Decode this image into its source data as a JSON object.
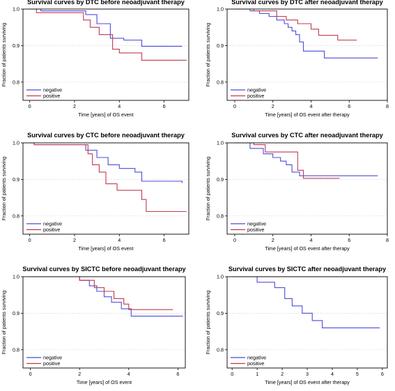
{
  "colors": {
    "negative": "#4b4bdb",
    "positive": "#c0394d",
    "frame": "#000000",
    "grid": "#cfcfcf"
  },
  "chart_data": [
    {
      "type": "line",
      "title": "Survival curves by DTC before neoadjuvant therapy",
      "xlabel": "Time [years] of OS event",
      "ylabel": "Fraction of patients surviving",
      "xlim": [
        -0.3,
        7.1
      ],
      "ylim": [
        0.75,
        1.0
      ],
      "xticks": [
        "0",
        "2",
        "4",
        "6"
      ],
      "xtick_values": [
        0,
        2,
        4,
        6
      ],
      "yticks": [
        "0.8",
        "0.9",
        "1.0"
      ],
      "ytick_values": [
        0.8,
        0.9,
        1.0
      ],
      "grid": "horizontal",
      "legend": "bottom-left",
      "series": [
        {
          "name": "negative",
          "x": [
            0,
            0.5,
            2.5,
            3.0,
            3.6,
            4.2,
            5.0,
            6.8
          ],
          "y": [
            1.0,
            0.995,
            0.985,
            0.96,
            0.92,
            0.915,
            0.898,
            0.898
          ]
        },
        {
          "name": "positive",
          "x": [
            0,
            0.3,
            2.4,
            2.7,
            3.1,
            3.7,
            4.0,
            5.0,
            7.0
          ],
          "y": [
            1.0,
            0.99,
            0.97,
            0.95,
            0.93,
            0.89,
            0.88,
            0.86,
            0.86
          ]
        }
      ]
    },
    {
      "type": "line",
      "title": "Survival curves by DTC after neoadjuvant therapy",
      "xlabel": "Time [years] of OS event after therapy",
      "ylabel": "Fraction of patients surviving",
      "xlim": [
        -0.4,
        8.0
      ],
      "ylim": [
        0.75,
        1.0
      ],
      "xticks": [
        "0",
        "2",
        "4",
        "6",
        "8"
      ],
      "xtick_values": [
        0,
        2,
        4,
        6,
        8
      ],
      "yticks": [
        "0.8",
        "0.9",
        "1.0"
      ],
      "ytick_values": [
        0.8,
        0.9,
        1.0
      ],
      "grid": "horizontal",
      "legend": "bottom-left",
      "series": [
        {
          "name": "negative",
          "x": [
            0,
            0.8,
            1.3,
            1.8,
            2.2,
            2.6,
            2.8,
            3.0,
            3.2,
            3.4,
            3.6,
            4.7,
            7.5
          ],
          "y": [
            1.0,
            0.995,
            0.988,
            0.98,
            0.97,
            0.96,
            0.95,
            0.94,
            0.93,
            0.91,
            0.885,
            0.866,
            0.866
          ]
        },
        {
          "name": "positive",
          "x": [
            0,
            1.0,
            2.2,
            2.7,
            3.3,
            4.0,
            4.4,
            5.4,
            6.4
          ],
          "y": [
            1.0,
            0.995,
            0.98,
            0.97,
            0.96,
            0.945,
            0.928,
            0.915,
            0.915
          ]
        }
      ]
    },
    {
      "type": "line",
      "title": "Survival curves by CTC before neoadjuvant therapy",
      "xlabel": "Time [years] of OS event",
      "ylabel": "Fraction of patients surviving",
      "xlim": [
        -0.3,
        7.1
      ],
      "ylim": [
        0.75,
        1.0
      ],
      "xticks": [
        "0",
        "2",
        "4",
        "6"
      ],
      "xtick_values": [
        0,
        2,
        4,
        6
      ],
      "yticks": [
        "0.8",
        "0.9",
        "1.0"
      ],
      "ytick_values": [
        0.8,
        0.9,
        1.0
      ],
      "grid": "horizontal",
      "legend": "bottom-left",
      "series": [
        {
          "name": "negative",
          "x": [
            0,
            0.2,
            2.5,
            3.0,
            3.5,
            4.0,
            4.7,
            5.0,
            6.8
          ],
          "y": [
            1.0,
            0.995,
            0.98,
            0.96,
            0.94,
            0.93,
            0.92,
            0.895,
            0.89
          ]
        },
        {
          "name": "positive",
          "x": [
            0,
            0.2,
            2.6,
            2.8,
            3.1,
            3.4,
            3.9,
            5.0,
            5.2,
            7.0
          ],
          "y": [
            1.0,
            0.995,
            0.97,
            0.94,
            0.92,
            0.888,
            0.87,
            0.845,
            0.812,
            0.812
          ]
        }
      ]
    },
    {
      "type": "line",
      "title": "Survival curves by CTC after neoadjuvant therapy",
      "xlabel": "Time [years] of OS event after therapy",
      "ylabel": "Fraction of patients surviving",
      "xlim": [
        -0.4,
        8.0
      ],
      "ylim": [
        0.75,
        1.0
      ],
      "xticks": [
        "0",
        "2",
        "4",
        "6",
        "8"
      ],
      "xtick_values": [
        0,
        2,
        4,
        6,
        8
      ],
      "yticks": [
        "0.8",
        "0.9",
        "1.0"
      ],
      "ytick_values": [
        0.8,
        0.9,
        1.0
      ],
      "grid": "horizontal",
      "legend": "bottom-left",
      "series": [
        {
          "name": "negative",
          "x": [
            0,
            0.8,
            1.5,
            2.0,
            2.4,
            2.7,
            3.0,
            3.4,
            7.5
          ],
          "y": [
            1.0,
            0.985,
            0.97,
            0.96,
            0.95,
            0.94,
            0.92,
            0.91,
            0.91
          ]
        },
        {
          "name": "positive",
          "x": [
            0,
            1.0,
            1.6,
            3.0,
            3.3,
            3.6,
            5.5
          ],
          "y": [
            1.0,
            0.995,
            0.975,
            0.975,
            0.925,
            0.903,
            0.903
          ]
        }
      ]
    },
    {
      "type": "line",
      "title": "Survival curves by SICTC before neoadjuvant therapy",
      "xlabel": "Time [years] of OS event",
      "ylabel": "Fraction of patients surviving",
      "xlim": [
        -0.3,
        6.3
      ],
      "ylim": [
        0.75,
        1.0
      ],
      "xticks": [
        "0",
        "2",
        "4",
        "6"
      ],
      "xtick_values": [
        0,
        2,
        4,
        6
      ],
      "yticks": [
        "0.8",
        "0.9",
        "1.0"
      ],
      "ytick_values": [
        0.8,
        0.9,
        1.0
      ],
      "grid": "horizontal",
      "legend": "bottom-left",
      "series": [
        {
          "name": "negative",
          "x": [
            0,
            2.0,
            2.4,
            2.7,
            3.0,
            3.3,
            3.7,
            4.1,
            6.2
          ],
          "y": [
            1.0,
            0.99,
            0.975,
            0.96,
            0.945,
            0.93,
            0.912,
            0.892,
            0.892
          ]
        },
        {
          "name": "positive",
          "x": [
            0,
            2.0,
            2.6,
            3.0,
            3.4,
            3.8,
            4.0,
            5.8
          ],
          "y": [
            1.0,
            0.99,
            0.97,
            0.96,
            0.94,
            0.925,
            0.91,
            0.91
          ]
        }
      ]
    },
    {
      "type": "line",
      "title": "Survival curves by SICTC after neoadjuvant therapy",
      "xlabel": "Time [years] of OS event after therapy",
      "ylabel": "Fraction of patients surviving",
      "xlim": [
        -0.2,
        6.2
      ],
      "ylim": [
        0.75,
        1.0
      ],
      "xticks": [
        "0",
        "1",
        "2",
        "3",
        "4",
        "5",
        "6"
      ],
      "xtick_values": [
        0,
        1,
        2,
        3,
        4,
        5,
        6
      ],
      "yticks": [
        "0.8",
        "0.9",
        "1.0"
      ],
      "ytick_values": [
        0.8,
        0.9,
        1.0
      ],
      "grid": "horizontal",
      "legend": "bottom-left",
      "series": [
        {
          "name": "negative",
          "x": [
            0,
            1.0,
            1.7,
            2.1,
            2.4,
            2.8,
            3.2,
            3.6,
            5.9
          ],
          "y": [
            1.0,
            0.985,
            0.97,
            0.94,
            0.92,
            0.9,
            0.88,
            0.86,
            0.86
          ]
        },
        {
          "name": "positive",
          "x": [
            0,
            5.8
          ],
          "y": [
            1.0,
            1.0
          ]
        }
      ]
    }
  ]
}
